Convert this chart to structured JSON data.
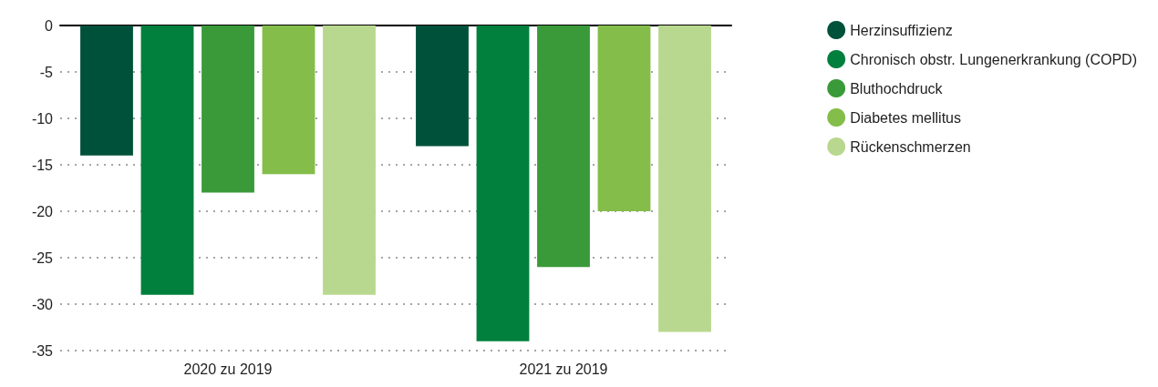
{
  "chart_data": {
    "type": "bar",
    "categories": [
      "2020 zu 2019",
      "2021 zu 2019"
    ],
    "series": [
      {
        "name": "Herzinsuffizienz",
        "color": "#00513a",
        "values": [
          -14,
          -13
        ]
      },
      {
        "name": "Chronisch obstr. Lungenerkrankung (COPD)",
        "color": "#007f3d",
        "values": [
          -29,
          -34
        ]
      },
      {
        "name": "Bluthochdruck",
        "color": "#3a9a3a",
        "values": [
          -18,
          -26
        ]
      },
      {
        "name": "Diabetes mellitus",
        "color": "#84bd4a",
        "values": [
          -16,
          -20
        ]
      },
      {
        "name": "Rückenschmerzen",
        "color": "#b9d88f",
        "values": [
          -29,
          -33
        ]
      }
    ],
    "ylim": [
      -35,
      0
    ],
    "yticks": [
      -35,
      -30,
      -25,
      -20,
      -15,
      -10,
      -5,
      0
    ],
    "grid": "y",
    "legend": "right"
  }
}
